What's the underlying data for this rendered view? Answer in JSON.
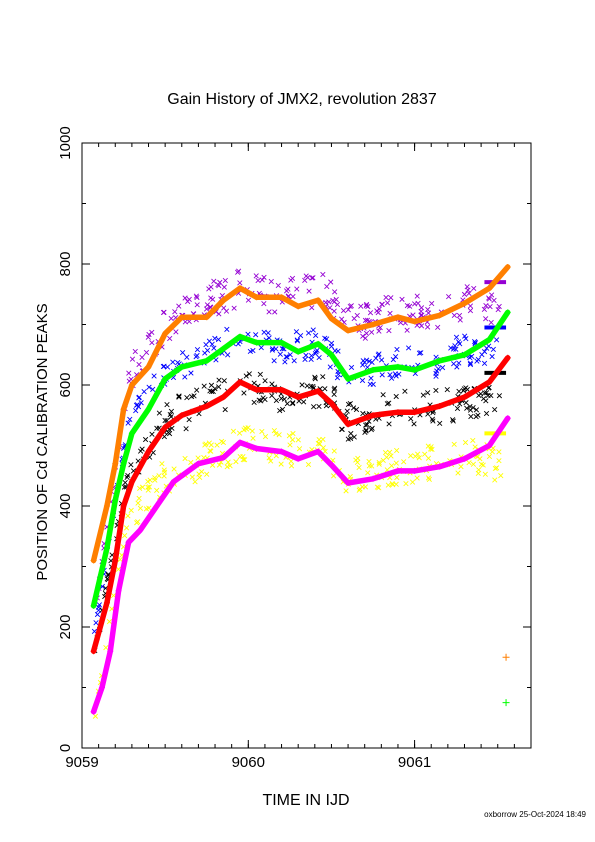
{
  "chart_data": {
    "type": "scatter",
    "title": "Gain History of JMX2, revolution 2837",
    "xlabel": "TIME IN IJD",
    "ylabel": "POSITION OF Cd CALIBRATION PEAKS",
    "xlim": [
      9059.0,
      9061.7
    ],
    "ylim": [
      0,
      1000
    ],
    "x_ticks": [
      "9059",
      "9060",
      "9061"
    ],
    "y_ticks": [
      "0",
      "200",
      "400",
      "600",
      "800",
      "1000"
    ],
    "grid": false,
    "legend": "none",
    "footer": "oxborrow 25-Oct-2024 18:49",
    "series": [
      {
        "color": "#9400d3",
        "marker": "x",
        "center": 730,
        "knots": [
          [
            9059.07,
            210
          ],
          [
            9059.28,
            610
          ],
          [
            9059.5,
            700
          ],
          [
            9059.75,
            740
          ],
          [
            9059.95,
            760
          ],
          [
            9060.2,
            745
          ],
          [
            9060.45,
            760
          ],
          [
            9060.6,
            700
          ],
          [
            9060.9,
            720
          ],
          [
            9061.1,
            715
          ],
          [
            9061.3,
            735
          ],
          [
            9061.52,
            730
          ]
        ],
        "scatter": 30,
        "count": 230,
        "flat": 770
      },
      {
        "color": "#0000ff",
        "marker": "x",
        "center": 650,
        "knots": [
          [
            9059.07,
            185
          ],
          [
            9059.28,
            540
          ],
          [
            9059.5,
            625
          ],
          [
            9059.75,
            650
          ],
          [
            9059.95,
            680
          ],
          [
            9060.2,
            660
          ],
          [
            9060.45,
            670
          ],
          [
            9060.6,
            610
          ],
          [
            9060.9,
            640
          ],
          [
            9061.1,
            635
          ],
          [
            9061.3,
            660
          ],
          [
            9061.52,
            650
          ]
        ],
        "scatter": 25,
        "count": 210,
        "flat": 695
      },
      {
        "color": "#000000",
        "marker": "x",
        "center": 570,
        "knots": [
          [
            9059.07,
            150
          ],
          [
            9059.28,
            460
          ],
          [
            9059.5,
            545
          ],
          [
            9059.75,
            570
          ],
          [
            9059.95,
            600
          ],
          [
            9060.2,
            585
          ],
          [
            9060.45,
            590
          ],
          [
            9060.6,
            540
          ],
          [
            9060.9,
            565
          ],
          [
            9061.1,
            560
          ],
          [
            9061.3,
            575
          ],
          [
            9061.52,
            565
          ]
        ],
        "scatter": 30,
        "count": 230,
        "flat": 620
      },
      {
        "color": "#ffff00",
        "marker": "x",
        "center": 470,
        "knots": [
          [
            9059.07,
            45
          ],
          [
            9059.28,
            390
          ],
          [
            9059.5,
            445
          ],
          [
            9059.75,
            475
          ],
          [
            9059.95,
            505
          ],
          [
            9060.2,
            495
          ],
          [
            9060.45,
            500
          ],
          [
            9060.6,
            450
          ],
          [
            9060.9,
            465
          ],
          [
            9061.1,
            470
          ],
          [
            9061.3,
            485
          ],
          [
            9061.52,
            470
          ]
        ],
        "scatter": 30,
        "count": 230,
        "flat": 520
      },
      {
        "color": "#ff7f00",
        "marker": "line",
        "points": [
          [
            9059.07,
            310
          ],
          [
            9059.15,
            400
          ],
          [
            9059.2,
            470
          ],
          [
            9059.25,
            560
          ],
          [
            9059.3,
            600
          ],
          [
            9059.4,
            630
          ],
          [
            9059.5,
            685
          ],
          [
            9059.6,
            712
          ],
          [
            9059.75,
            712
          ],
          [
            9059.85,
            740
          ],
          [
            9059.95,
            760
          ],
          [
            9060.05,
            745
          ],
          [
            9060.2,
            745
          ],
          [
            9060.3,
            730
          ],
          [
            9060.42,
            740
          ],
          [
            9060.5,
            710
          ],
          [
            9060.6,
            690
          ],
          [
            9060.75,
            700
          ],
          [
            9060.9,
            712
          ],
          [
            9061.0,
            705
          ],
          [
            9061.15,
            715
          ],
          [
            9061.3,
            735
          ],
          [
            9061.45,
            760
          ],
          [
            9061.56,
            795
          ]
        ]
      },
      {
        "color": "#00ff00",
        "marker": "line",
        "points": [
          [
            9059.07,
            235
          ],
          [
            9059.15,
            330
          ],
          [
            9059.2,
            410
          ],
          [
            9059.25,
            470
          ],
          [
            9059.3,
            520
          ],
          [
            9059.4,
            560
          ],
          [
            9059.5,
            610
          ],
          [
            9059.6,
            630
          ],
          [
            9059.75,
            640
          ],
          [
            9059.85,
            660
          ],
          [
            9059.95,
            680
          ],
          [
            9060.05,
            670
          ],
          [
            9060.2,
            670
          ],
          [
            9060.3,
            655
          ],
          [
            9060.42,
            668
          ],
          [
            9060.5,
            650
          ],
          [
            9060.6,
            610
          ],
          [
            9060.75,
            625
          ],
          [
            9060.9,
            630
          ],
          [
            9061.0,
            625
          ],
          [
            9061.15,
            640
          ],
          [
            9061.3,
            650
          ],
          [
            9061.45,
            675
          ],
          [
            9061.56,
            720
          ]
        ]
      },
      {
        "color": "#ff0000",
        "marker": "line",
        "points": [
          [
            9059.07,
            160
          ],
          [
            9059.15,
            240
          ],
          [
            9059.2,
            310
          ],
          [
            9059.25,
            400
          ],
          [
            9059.3,
            440
          ],
          [
            9059.4,
            490
          ],
          [
            9059.5,
            530
          ],
          [
            9059.6,
            550
          ],
          [
            9059.75,
            565
          ],
          [
            9059.85,
            580
          ],
          [
            9059.95,
            605
          ],
          [
            9060.05,
            592
          ],
          [
            9060.2,
            592
          ],
          [
            9060.3,
            580
          ],
          [
            9060.42,
            590
          ],
          [
            9060.5,
            570
          ],
          [
            9060.6,
            535
          ],
          [
            9060.75,
            550
          ],
          [
            9060.9,
            555
          ],
          [
            9061.0,
            555
          ],
          [
            9061.15,
            565
          ],
          [
            9061.3,
            580
          ],
          [
            9061.45,
            605
          ],
          [
            9061.56,
            645
          ]
        ]
      },
      {
        "color": "#ff00ff",
        "marker": "line",
        "points": [
          [
            9059.07,
            60
          ],
          [
            9059.12,
            100
          ],
          [
            9059.17,
            160
          ],
          [
            9059.22,
            260
          ],
          [
            9059.28,
            340
          ],
          [
            9059.35,
            360
          ],
          [
            9059.45,
            400
          ],
          [
            9059.55,
            440
          ],
          [
            9059.7,
            470
          ],
          [
            9059.85,
            480
          ],
          [
            9059.95,
            505
          ],
          [
            9060.05,
            495
          ],
          [
            9060.2,
            490
          ],
          [
            9060.3,
            478
          ],
          [
            9060.42,
            490
          ],
          [
            9060.5,
            468
          ],
          [
            9060.6,
            438
          ],
          [
            9060.75,
            445
          ],
          [
            9060.9,
            458
          ],
          [
            9061.0,
            458
          ],
          [
            9061.15,
            465
          ],
          [
            9061.3,
            478
          ],
          [
            9061.45,
            500
          ],
          [
            9061.56,
            545
          ]
        ]
      }
    ],
    "markers": [
      {
        "color": "#ff7f00",
        "x": 9061.55,
        "y": 150
      },
      {
        "color": "#00ff00",
        "x": 9061.55,
        "y": 75
      }
    ]
  }
}
